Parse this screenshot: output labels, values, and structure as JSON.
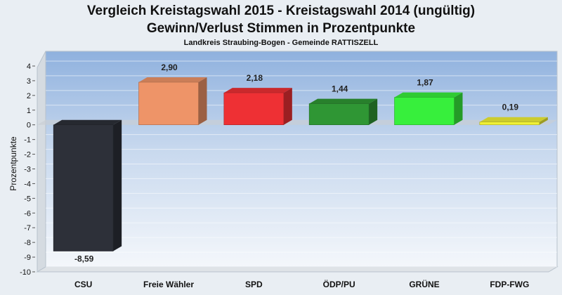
{
  "chart_data": {
    "type": "bar",
    "title": "Vergleich Kreistagswahl 2015 - Kreistagswahl 2014 (ungültig)",
    "title2": "Gewinn/Verlust Stimmen in Prozentpunkte",
    "subtitle": "Landkreis Straubing-Bogen - Gemeinde RATTISZELL",
    "ylabel": "Prozentpunkte",
    "xlabel": "",
    "ylim": [
      -10,
      4
    ],
    "yticks": [
      4,
      3,
      2,
      1,
      0,
      -1,
      -2,
      -3,
      -4,
      -5,
      -6,
      -7,
      -8,
      -9,
      -10
    ],
    "categories": [
      "CSU",
      "Freie Wähler",
      "SPD",
      "ÖDP/PU",
      "GRÜNE",
      "FDP-FWG"
    ],
    "values": [
      -8.59,
      2.9,
      2.18,
      1.44,
      1.87,
      0.19
    ],
    "value_labels": [
      "-8,59",
      "2,90",
      "2,18",
      "1,44",
      "1,87",
      "0,19"
    ],
    "colors": [
      "#2d3039",
      "#ee9468",
      "#ee3034",
      "#2f9634",
      "#37ef3c",
      "#f0f035"
    ],
    "grid": true,
    "legend": "none"
  }
}
